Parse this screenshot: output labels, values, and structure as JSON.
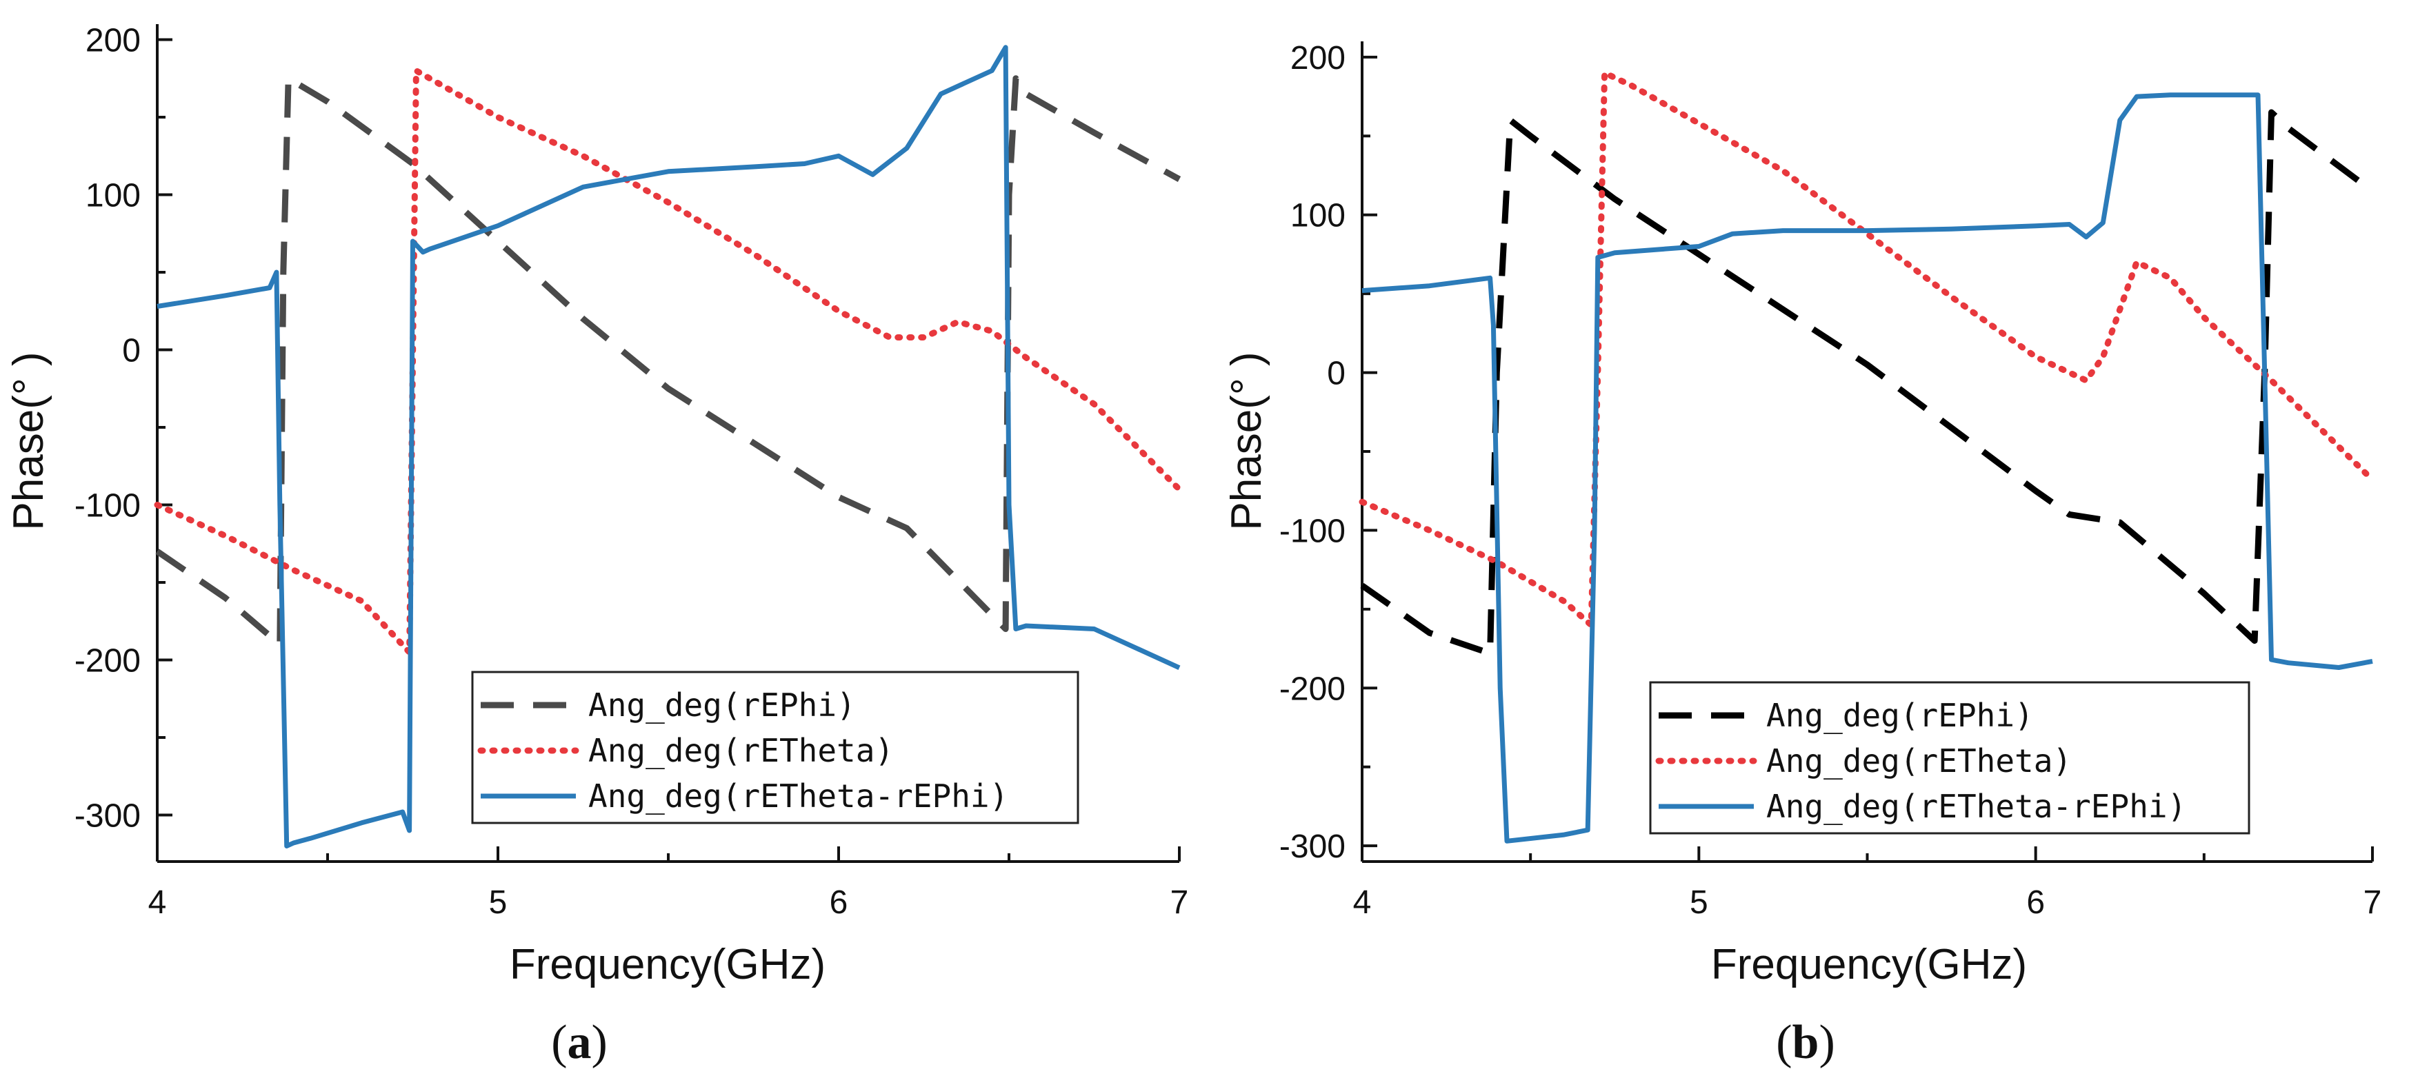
{
  "chart_data": [
    {
      "type": "line",
      "panel_label": "(a)",
      "panel_letter": "a",
      "xlabel": "Frequency(GHz)",
      "ylabel": "Phase(°  )",
      "xlim": [
        4,
        7
      ],
      "ylim": [
        -330,
        210
      ],
      "xticks": [
        4,
        5,
        6,
        7
      ],
      "yticks": [
        -300,
        -200,
        -100,
        0,
        100,
        200
      ],
      "legend_position": "bottom-right",
      "series": [
        {
          "name": "Ang_deg(rEPhi)",
          "color": "#4a4a4a",
          "style": "dash",
          "x": [
            4.0,
            4.2,
            4.36,
            4.37,
            4.385,
            4.5,
            4.75,
            5.0,
            5.25,
            5.5,
            5.75,
            6.0,
            6.2,
            6.49,
            6.5,
            6.52,
            6.55,
            6.75,
            7.0
          ],
          "y": [
            -130,
            -160,
            -190,
            50,
            175,
            160,
            120,
            70,
            20,
            -25,
            -60,
            -95,
            -115,
            -180,
            100,
            175,
            165,
            140,
            110
          ]
        },
        {
          "name": "Ang_deg(rETheta)",
          "color": "#e8383d",
          "style": "dot",
          "x": [
            4.0,
            4.2,
            4.4,
            4.6,
            4.74,
            4.76,
            4.8,
            5.0,
            5.25,
            5.5,
            5.75,
            6.0,
            6.15,
            6.25,
            6.35,
            6.45,
            6.55,
            6.75,
            7.0
          ],
          "y": [
            -100,
            -120,
            -142,
            -162,
            -195,
            180,
            175,
            150,
            125,
            95,
            62,
            25,
            8,
            8,
            18,
            12,
            -5,
            -35,
            -90
          ]
        },
        {
          "name": "Ang_deg(rETheta-rEPhi)",
          "color": "#2b7bb9",
          "style": "solid",
          "x": [
            4.0,
            4.2,
            4.33,
            4.35,
            4.36,
            4.38,
            4.4,
            4.45,
            4.6,
            4.72,
            4.74,
            4.75,
            4.78,
            4.8,
            5.0,
            5.25,
            5.5,
            5.75,
            5.9,
            6.0,
            6.1,
            6.2,
            6.3,
            6.45,
            6.49,
            6.5,
            6.52,
            6.55,
            6.75,
            7.0
          ],
          "y": [
            28,
            35,
            40,
            50,
            -100,
            -320,
            -318,
            -315,
            -305,
            -298,
            -310,
            70,
            63,
            65,
            80,
            105,
            115,
            118,
            120,
            125,
            113,
            130,
            165,
            180,
            195,
            -100,
            -180,
            -178,
            -180,
            -205
          ]
        }
      ]
    },
    {
      "type": "line",
      "panel_label": "(b)",
      "panel_letter": "b",
      "xlabel": "Frequency(GHz)",
      "ylabel": "Phase(°  )",
      "xlim": [
        4,
        7
      ],
      "ylim": [
        -310,
        210
      ],
      "xticks": [
        4,
        5,
        6,
        7
      ],
      "yticks": [
        -300,
        -200,
        -100,
        0,
        100,
        200
      ],
      "legend_position": "bottom-right",
      "series": [
        {
          "name": "Ang_deg(rEPhi)",
          "color": "#000000",
          "style": "dash",
          "x": [
            4.0,
            4.2,
            4.38,
            4.4,
            4.44,
            4.5,
            4.75,
            5.0,
            5.25,
            5.5,
            5.75,
            6.0,
            6.1,
            6.25,
            6.5,
            6.65,
            6.68,
            6.7,
            6.75,
            7.0
          ],
          "y": [
            -135,
            -165,
            -178,
            0,
            160,
            150,
            110,
            75,
            40,
            5,
            -35,
            -75,
            -90,
            -95,
            -140,
            -170,
            0,
            165,
            155,
            115
          ]
        },
        {
          "name": "Ang_deg(rETheta)",
          "color": "#e8383d",
          "style": "dot",
          "x": [
            4.0,
            4.2,
            4.4,
            4.6,
            4.68,
            4.7,
            4.72,
            4.8,
            5.0,
            5.25,
            5.5,
            5.75,
            6.0,
            6.15,
            6.2,
            6.3,
            6.4,
            6.5,
            6.7,
            7.0
          ],
          "y": [
            -82,
            -100,
            -120,
            -145,
            -160,
            0,
            190,
            182,
            158,
            128,
            88,
            48,
            10,
            -5,
            10,
            70,
            60,
            35,
            -5,
            -68
          ]
        },
        {
          "name": "Ang_deg(rETheta-rEPhi)",
          "color": "#2b7bb9",
          "style": "solid",
          "x": [
            4.0,
            4.2,
            4.38,
            4.39,
            4.41,
            4.43,
            4.6,
            4.67,
            4.69,
            4.7,
            4.75,
            5.0,
            5.1,
            5.25,
            5.5,
            5.75,
            6.0,
            6.1,
            6.15,
            6.2,
            6.25,
            6.3,
            6.4,
            6.5,
            6.66,
            6.68,
            6.7,
            6.75,
            6.9,
            7.0
          ],
          "y": [
            52,
            55,
            60,
            30,
            -200,
            -297,
            -293,
            -290,
            -100,
            73,
            76,
            80,
            88,
            90,
            90,
            91,
            93,
            94,
            86,
            95,
            160,
            175,
            176,
            176,
            176,
            0,
            -182,
            -184,
            -187,
            -183
          ]
        }
      ]
    }
  ]
}
